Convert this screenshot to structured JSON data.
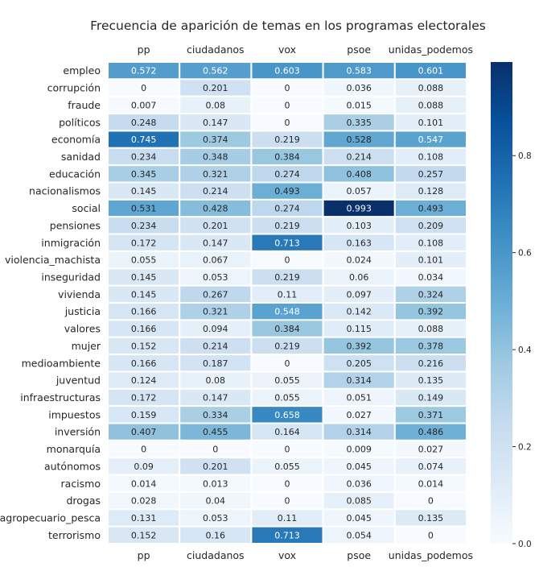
{
  "chart_data": {
    "type": "heatmap",
    "title": "Frecuencia de aparición de temas en los programas electorales",
    "columns": [
      "pp",
      "ciudadanos",
      "vox",
      "psoe",
      "unidas_podemos"
    ],
    "rows": [
      "empleo",
      "corrupción",
      "fraude",
      "políticos",
      "economía",
      "sanidad",
      "educación",
      "nacionalismos",
      "social",
      "pensiones",
      "inmigración",
      "violencia_machista",
      "inseguridad",
      "vivienda",
      "justicia",
      "valores",
      "mujer",
      "medioambiente",
      "juventud",
      "infraestructuras",
      "impuestos",
      "inversión",
      "monarquía",
      "autónomos",
      "racismo",
      "drogas",
      "agropecuario_pesca",
      "terrorismo"
    ],
    "values": [
      [
        0.572,
        0.562,
        0.603,
        0.583,
        0.601
      ],
      [
        0,
        0.201,
        0,
        0.036,
        0.088
      ],
      [
        0.007,
        0.08,
        0,
        0.015,
        0.088
      ],
      [
        0.248,
        0.147,
        0,
        0.335,
        0.101
      ],
      [
        0.745,
        0.374,
        0.219,
        0.528,
        0.547
      ],
      [
        0.234,
        0.348,
        0.384,
        0.214,
        0.108
      ],
      [
        0.345,
        0.321,
        0.274,
        0.408,
        0.257
      ],
      [
        0.145,
        0.214,
        0.493,
        0.057,
        0.128
      ],
      [
        0.531,
        0.428,
        0.274,
        0.993,
        0.493
      ],
      [
        0.234,
        0.201,
        0.219,
        0.103,
        0.209
      ],
      [
        0.172,
        0.147,
        0.713,
        0.163,
        0.108
      ],
      [
        0.055,
        0.067,
        0,
        0.024,
        0.101
      ],
      [
        0.145,
        0.053,
        0.219,
        0.06,
        0.034
      ],
      [
        0.145,
        0.267,
        0.11,
        0.097,
        0.324
      ],
      [
        0.166,
        0.321,
        0.548,
        0.142,
        0.392
      ],
      [
        0.166,
        0.094,
        0.384,
        0.115,
        0.088
      ],
      [
        0.152,
        0.214,
        0.219,
        0.392,
        0.378
      ],
      [
        0.166,
        0.187,
        0,
        0.205,
        0.216
      ],
      [
        0.124,
        0.08,
        0.055,
        0.314,
        0.135
      ],
      [
        0.172,
        0.147,
        0.055,
        0.051,
        0.149
      ],
      [
        0.159,
        0.334,
        0.658,
        0.027,
        0.371
      ],
      [
        0.407,
        0.455,
        0.164,
        0.314,
        0.486
      ],
      [
        0,
        0,
        0,
        0.009,
        0.027
      ],
      [
        0.09,
        0.201,
        0.055,
        0.045,
        0.074
      ],
      [
        0.014,
        0.013,
        0,
        0.036,
        0.014
      ],
      [
        0.028,
        0.04,
        0,
        0.085,
        0
      ],
      [
        0.131,
        0.053,
        0.11,
        0.045,
        0.135
      ],
      [
        0.152,
        0.16,
        0.713,
        0.054,
        0
      ]
    ],
    "colorbar": {
      "range": [
        0,
        0.993
      ],
      "ticks": [
        0.0,
        0.2,
        0.4,
        0.6,
        0.8
      ],
      "tick_labels": [
        "0.0",
        "0.2",
        "0.4",
        "0.6",
        "0.8"
      ],
      "colormap": "Blues"
    },
    "x_labels_top_and_bottom": true,
    "cell_border_color": "#ffffff"
  }
}
